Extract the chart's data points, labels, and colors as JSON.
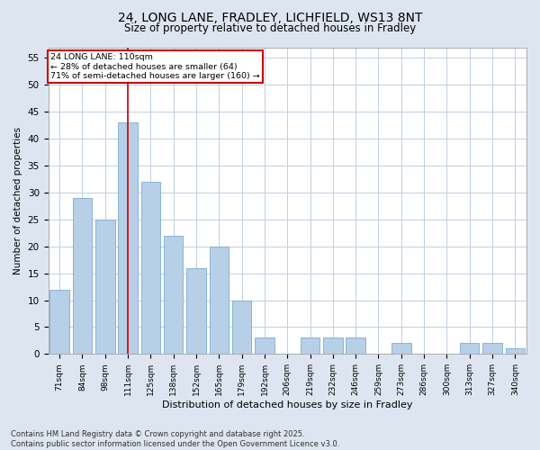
{
  "title1": "24, LONG LANE, FRADLEY, LICHFIELD, WS13 8NT",
  "title2": "Size of property relative to detached houses in Fradley",
  "xlabel": "Distribution of detached houses by size in Fradley",
  "ylabel": "Number of detached properties",
  "categories": [
    "71sqm",
    "84sqm",
    "98sqm",
    "111sqm",
    "125sqm",
    "138sqm",
    "152sqm",
    "165sqm",
    "179sqm",
    "192sqm",
    "206sqm",
    "219sqm",
    "232sqm",
    "246sqm",
    "259sqm",
    "273sqm",
    "286sqm",
    "300sqm",
    "313sqm",
    "327sqm",
    "340sqm"
  ],
  "values": [
    12,
    29,
    25,
    43,
    32,
    22,
    16,
    20,
    10,
    3,
    0,
    3,
    3,
    3,
    0,
    2,
    0,
    0,
    2,
    2,
    1
  ],
  "bar_color": "#b8cfe8",
  "bar_edge_color": "#7aadd4",
  "marker_index": 3,
  "marker_line_color": "#cc0000",
  "annotation_line1": "24 LONG LANE: 110sqm",
  "annotation_line2": "← 28% of detached houses are smaller (64)",
  "annotation_line3": "71% of semi-detached houses are larger (160) →",
  "annotation_box_color": "#cc0000",
  "ylim": [
    0,
    57
  ],
  "yticks": [
    0,
    5,
    10,
    15,
    20,
    25,
    30,
    35,
    40,
    45,
    50,
    55
  ],
  "footer1": "Contains HM Land Registry data © Crown copyright and database right 2025.",
  "footer2": "Contains public sector information licensed under the Open Government Licence v3.0.",
  "bg_color": "#dde6f0",
  "plot_bg_color": "#ffffff",
  "grid_color": "#c0cfe0"
}
